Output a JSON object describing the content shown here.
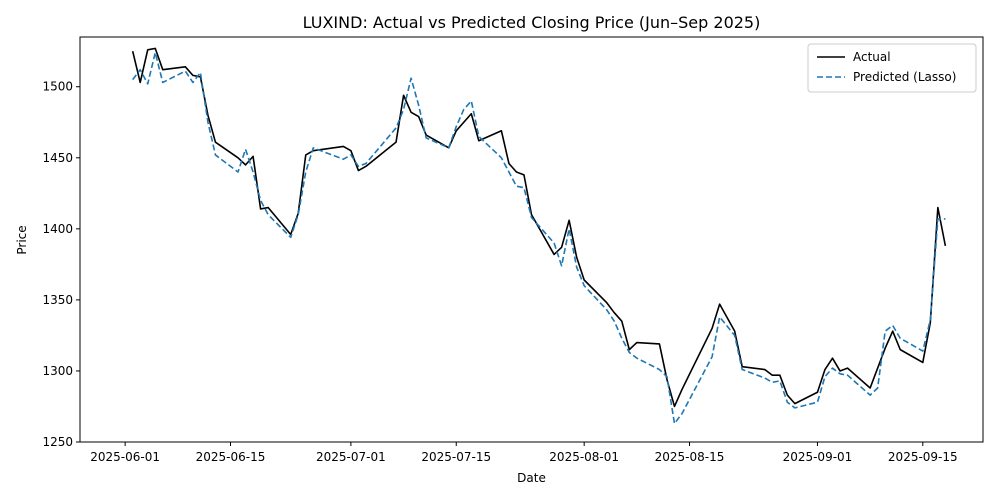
{
  "chart_data": {
    "type": "line",
    "title": "LUXIND: Actual vs Predicted Closing Price (Jun–Sep 2025)",
    "xlabel": "Date",
    "ylabel": "Price",
    "xlim": [
      "2025-05-26",
      "2025-09-23"
    ],
    "ylim": [
      1250,
      1535
    ],
    "x_ticks": [
      "2025-06-01",
      "2025-06-15",
      "2025-07-01",
      "2025-07-15",
      "2025-08-01",
      "2025-08-15",
      "2025-09-01",
      "2025-09-15"
    ],
    "y_ticks": [
      1250,
      1300,
      1350,
      1400,
      1450,
      1500
    ],
    "grid": false,
    "legend_position": "top-right",
    "series": [
      {
        "name": "Actual",
        "color": "#000000",
        "style": "solid",
        "points": [
          [
            "2025-06-02",
            1525
          ],
          [
            "2025-06-03",
            1503
          ],
          [
            "2025-06-04",
            1526
          ],
          [
            "2025-06-05",
            1527
          ],
          [
            "2025-06-06",
            1512
          ],
          [
            "2025-06-09",
            1514
          ],
          [
            "2025-06-10",
            1508
          ],
          [
            "2025-06-11",
            1507
          ],
          [
            "2025-06-12",
            1480
          ],
          [
            "2025-06-13",
            1461
          ],
          [
            "2025-06-16",
            1450
          ],
          [
            "2025-06-17",
            1445
          ],
          [
            "2025-06-18",
            1451
          ],
          [
            "2025-06-19",
            1414
          ],
          [
            "2025-06-20",
            1415
          ],
          [
            "2025-06-23",
            1396
          ],
          [
            "2025-06-24",
            1411
          ],
          [
            "2025-06-25",
            1452
          ],
          [
            "2025-06-26",
            1455
          ],
          [
            "2025-06-30",
            1458
          ],
          [
            "2025-07-01",
            1455
          ],
          [
            "2025-07-02",
            1441
          ],
          [
            "2025-07-03",
            1444
          ],
          [
            "2025-07-07",
            1461
          ],
          [
            "2025-07-08",
            1494
          ],
          [
            "2025-07-09",
            1482
          ],
          [
            "2025-07-10",
            1479
          ],
          [
            "2025-07-11",
            1466
          ],
          [
            "2025-07-14",
            1457
          ],
          [
            "2025-07-15",
            1469
          ],
          [
            "2025-07-17",
            1481
          ],
          [
            "2025-07-18",
            1462
          ],
          [
            "2025-07-21",
            1469
          ],
          [
            "2025-07-22",
            1446
          ],
          [
            "2025-07-23",
            1440
          ],
          [
            "2025-07-24",
            1438
          ],
          [
            "2025-07-25",
            1410
          ],
          [
            "2025-07-28",
            1382
          ],
          [
            "2025-07-29",
            1387
          ],
          [
            "2025-07-30",
            1406
          ],
          [
            "2025-07-31",
            1380
          ],
          [
            "2025-08-01",
            1364
          ],
          [
            "2025-08-04",
            1348
          ],
          [
            "2025-08-05",
            1341
          ],
          [
            "2025-08-06",
            1335
          ],
          [
            "2025-08-07",
            1315
          ],
          [
            "2025-08-08",
            1320
          ],
          [
            "2025-08-11",
            1319
          ],
          [
            "2025-08-12",
            1294
          ],
          [
            "2025-08-13",
            1275
          ],
          [
            "2025-08-14",
            1287
          ],
          [
            "2025-08-18",
            1330
          ],
          [
            "2025-08-19",
            1347
          ],
          [
            "2025-08-21",
            1328
          ],
          [
            "2025-08-22",
            1303
          ],
          [
            "2025-08-25",
            1301
          ],
          [
            "2025-08-26",
            1297
          ],
          [
            "2025-08-27",
            1297
          ],
          [
            "2025-08-28",
            1283
          ],
          [
            "2025-08-29",
            1277
          ],
          [
            "2025-09-01",
            1285
          ],
          [
            "2025-09-02",
            1301
          ],
          [
            "2025-09-03",
            1309
          ],
          [
            "2025-09-04",
            1300
          ],
          [
            "2025-09-05",
            1302
          ],
          [
            "2025-09-08",
            1288
          ],
          [
            "2025-09-10",
            1316
          ],
          [
            "2025-09-11",
            1328
          ],
          [
            "2025-09-12",
            1315
          ],
          [
            "2025-09-15",
            1306
          ],
          [
            "2025-09-16",
            1334
          ],
          [
            "2025-09-17",
            1415
          ],
          [
            "2025-09-18",
            1388
          ]
        ]
      },
      {
        "name": "Predicted (Lasso)",
        "color": "#1f77b4",
        "style": "dashed",
        "points": [
          [
            "2025-06-02",
            1505
          ],
          [
            "2025-06-03",
            1512
          ],
          [
            "2025-06-04",
            1502
          ],
          [
            "2025-06-05",
            1524
          ],
          [
            "2025-06-06",
            1503
          ],
          [
            "2025-06-09",
            1511
          ],
          [
            "2025-06-10",
            1503
          ],
          [
            "2025-06-11",
            1510
          ],
          [
            "2025-06-12",
            1475
          ],
          [
            "2025-06-13",
            1452
          ],
          [
            "2025-06-16",
            1440
          ],
          [
            "2025-06-17",
            1456
          ],
          [
            "2025-06-18",
            1440
          ],
          [
            "2025-06-19",
            1420
          ],
          [
            "2025-06-20",
            1410
          ],
          [
            "2025-06-23",
            1394
          ],
          [
            "2025-06-24",
            1410
          ],
          [
            "2025-06-25",
            1440
          ],
          [
            "2025-06-26",
            1457
          ],
          [
            "2025-06-30",
            1449
          ],
          [
            "2025-07-01",
            1452
          ],
          [
            "2025-07-02",
            1444
          ],
          [
            "2025-07-03",
            1446
          ],
          [
            "2025-07-07",
            1471
          ],
          [
            "2025-07-08",
            1484
          ],
          [
            "2025-07-09",
            1506
          ],
          [
            "2025-07-10",
            1487
          ],
          [
            "2025-07-11",
            1464
          ],
          [
            "2025-07-14",
            1457
          ],
          [
            "2025-07-15",
            1472
          ],
          [
            "2025-07-16",
            1484
          ],
          [
            "2025-07-17",
            1490
          ],
          [
            "2025-07-18",
            1465
          ],
          [
            "2025-07-21",
            1450
          ],
          [
            "2025-07-23",
            1430
          ],
          [
            "2025-07-24",
            1429
          ],
          [
            "2025-07-25",
            1408
          ],
          [
            "2025-07-28",
            1390
          ],
          [
            "2025-07-29",
            1374
          ],
          [
            "2025-07-30",
            1400
          ],
          [
            "2025-07-31",
            1373
          ],
          [
            "2025-08-01",
            1360
          ],
          [
            "2025-08-04",
            1343
          ],
          [
            "2025-08-05",
            1335
          ],
          [
            "2025-08-06",
            1323
          ],
          [
            "2025-08-07",
            1313
          ],
          [
            "2025-08-08",
            1309
          ],
          [
            "2025-08-11",
            1301
          ],
          [
            "2025-08-12",
            1296
          ],
          [
            "2025-08-13",
            1263
          ],
          [
            "2025-08-14",
            1270
          ],
          [
            "2025-08-18",
            1310
          ],
          [
            "2025-08-19",
            1338
          ],
          [
            "2025-08-21",
            1325
          ],
          [
            "2025-08-22",
            1301
          ],
          [
            "2025-08-25",
            1295
          ],
          [
            "2025-08-26",
            1292
          ],
          [
            "2025-08-27",
            1293
          ],
          [
            "2025-08-28",
            1278
          ],
          [
            "2025-08-29",
            1274
          ],
          [
            "2025-09-01",
            1278
          ],
          [
            "2025-09-02",
            1296
          ],
          [
            "2025-09-03",
            1302
          ],
          [
            "2025-09-04",
            1298
          ],
          [
            "2025-09-05",
            1297
          ],
          [
            "2025-09-08",
            1283
          ],
          [
            "2025-09-09",
            1288
          ],
          [
            "2025-09-10",
            1328
          ],
          [
            "2025-09-11",
            1332
          ],
          [
            "2025-09-12",
            1323
          ],
          [
            "2025-09-15",
            1314
          ],
          [
            "2025-09-16",
            1336
          ],
          [
            "2025-09-17",
            1407
          ],
          [
            "2025-09-18",
            1407
          ]
        ]
      }
    ]
  }
}
